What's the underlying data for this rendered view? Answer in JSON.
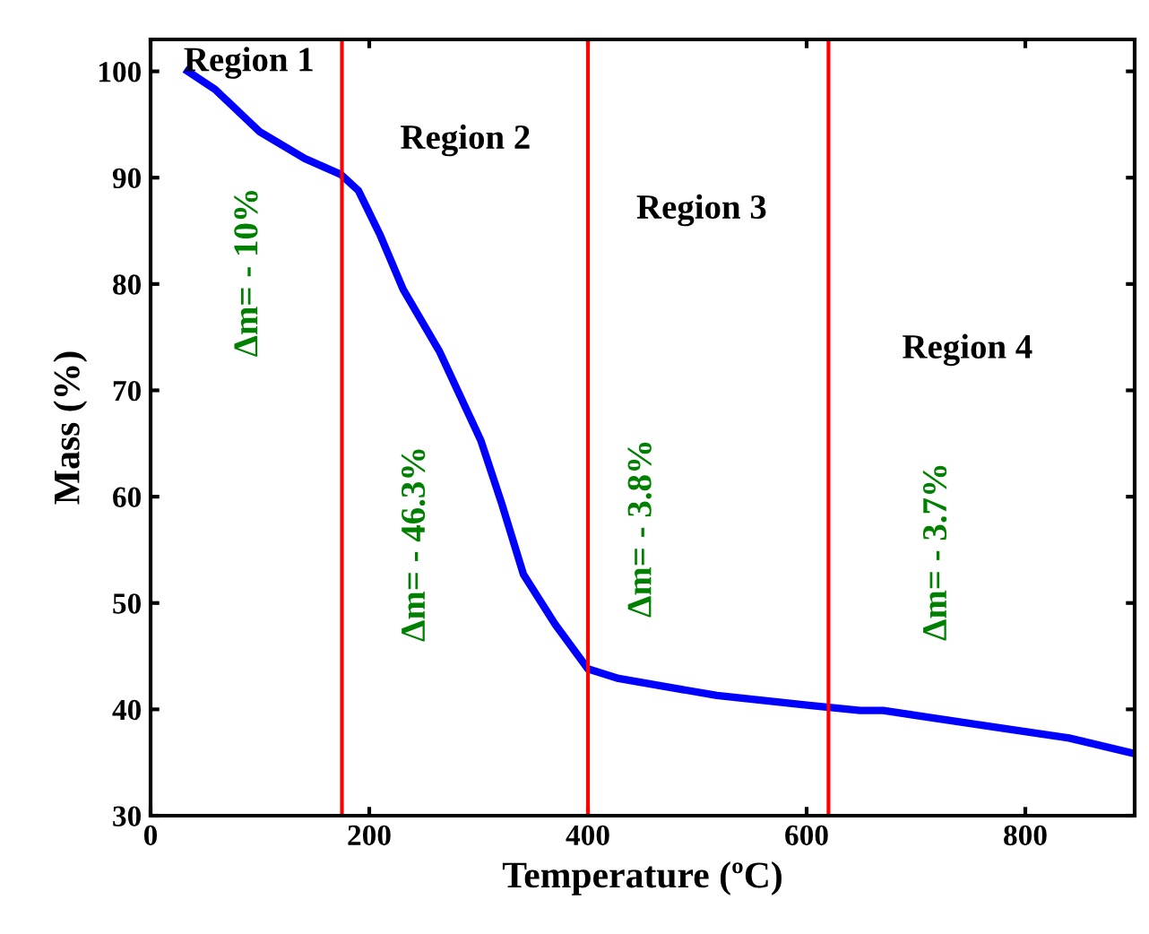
{
  "chart_data": {
    "type": "line",
    "xlabel": "Temperature (ºC)",
    "ylabel": "Mass (%)",
    "xlim": [
      0,
      900
    ],
    "ylim": [
      30,
      103
    ],
    "xticks": [
      0,
      200,
      400,
      600,
      800
    ],
    "yticks": [
      30,
      40,
      50,
      60,
      70,
      80,
      90,
      100
    ],
    "grid": false,
    "legend": false,
    "x": [
      34,
      59,
      100,
      141,
      174,
      190,
      210,
      231,
      264,
      302,
      321,
      341,
      370,
      400,
      428,
      518,
      600,
      649,
      670,
      715,
      780,
      840,
      897
    ],
    "series": [
      {
        "color": "#0000ff",
        "values": [
          100,
          98.3,
          94.3,
          91.8,
          90.3,
          88.8,
          84.6,
          79.5,
          73.7,
          65.3,
          59.4,
          52.7,
          48,
          43.8,
          42.9,
          41.3,
          40.4,
          39.9,
          39.9,
          39.2,
          38.2,
          37.3,
          35.9
        ]
      }
    ],
    "ref_lines": [
      {
        "axis": "x",
        "value": 175,
        "color": "#ff0000"
      },
      {
        "axis": "x",
        "value": 400,
        "color": "#ff0000"
      },
      {
        "axis": "x",
        "value": 620,
        "color": "#ff0000"
      }
    ],
    "annotations": [
      "Region 1",
      "Region 2",
      "Region 3",
      "Region 4",
      "Δm= - 10%",
      "Δm= - 46.3%",
      "Δm= - 3.8%",
      "Δm= - 3.7%"
    ]
  }
}
